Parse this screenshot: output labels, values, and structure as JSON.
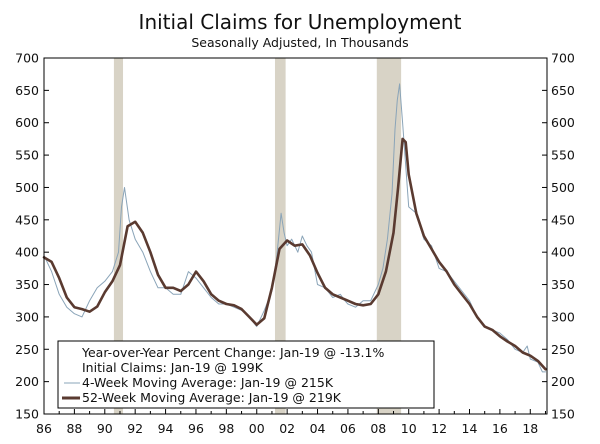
{
  "chart_data": {
    "type": "line",
    "title": "Initial Claims for Unemployment",
    "subtitle": "Seasonally Adjusted, In Thousands",
    "xlabel": "",
    "ylabel": "",
    "xlim": [
      1986,
      2019.1
    ],
    "ylim": [
      150,
      700
    ],
    "y_ticks": [
      150,
      200,
      250,
      300,
      350,
      400,
      450,
      500,
      550,
      600,
      650,
      700
    ],
    "x_ticks": [
      1986,
      1988,
      1990,
      1992,
      1994,
      1996,
      1998,
      2000,
      2002,
      2004,
      2006,
      2008,
      2010,
      2012,
      2014,
      2016,
      2018
    ],
    "x_tick_labels": [
      "86",
      "88",
      "90",
      "92",
      "94",
      "96",
      "98",
      "00",
      "02",
      "04",
      "06",
      "08",
      "10",
      "12",
      "14",
      "16",
      "18"
    ],
    "dual_y_axis": true,
    "grid": false,
    "legend_position": "bottom-left",
    "recessions": [
      [
        1990.6,
        1991.2
      ],
      [
        2001.2,
        2001.9
      ],
      [
        2007.9,
        2009.5
      ]
    ],
    "colors": {
      "four_week": "#8aa4b8",
      "fifty_two_week": "#5a3a30",
      "recession": "#d8d3c6"
    },
    "legend": [
      {
        "text": "Year-over-Year Percent Change: Jan-19 @ -13.1%",
        "marker": "none"
      },
      {
        "text": "Initial Claims: Jan-19 @ 199K",
        "marker": "none"
      },
      {
        "text": "4-Week Moving Average: Jan-19 @ 215K",
        "marker": "thin-line"
      },
      {
        "text": "52-Week Moving Average: Jan-19 @ 219K",
        "marker": "thick-line"
      }
    ],
    "series": [
      {
        "key": "four_week",
        "x": [
          1986.0,
          1986.5,
          1987.0,
          1987.5,
          1988.0,
          1988.5,
          1989.0,
          1989.5,
          1990.0,
          1990.5,
          1990.9,
          1991.1,
          1991.3,
          1991.6,
          1992.0,
          1992.5,
          1993.0,
          1993.5,
          1994.0,
          1994.5,
          1995.0,
          1995.5,
          1996.0,
          1996.5,
          1997.0,
          1997.5,
          1998.0,
          1998.5,
          1999.0,
          1999.5,
          2000.0,
          2000.5,
          2001.0,
          2001.3,
          2001.6,
          2001.8,
          2002.0,
          2002.3,
          2002.7,
          2003.0,
          2003.3,
          2003.6,
          2004.0,
          2004.5,
          2005.0,
          2005.5,
          2005.8,
          2006.0,
          2006.5,
          2007.0,
          2007.5,
          2008.0,
          2008.3,
          2008.6,
          2008.9,
          2009.1,
          2009.25,
          2009.4,
          2009.6,
          2010.0,
          2010.5,
          2011.0,
          2011.5,
          2012.0,
          2012.5,
          2013.0,
          2013.5,
          2014.0,
          2014.5,
          2015.0,
          2015.5,
          2016.0,
          2016.5,
          2017.0,
          2017.5,
          2017.8,
          2018.0,
          2018.5,
          2018.8,
          2019.0
        ],
        "values": [
          395,
          370,
          335,
          315,
          305,
          300,
          325,
          345,
          355,
          370,
          400,
          470,
          500,
          450,
          420,
          400,
          370,
          345,
          345,
          335,
          335,
          370,
          360,
          345,
          330,
          320,
          320,
          315,
          310,
          300,
          285,
          310,
          340,
          390,
          460,
          430,
          410,
          420,
          400,
          425,
          410,
          400,
          350,
          345,
          330,
          335,
          325,
          320,
          315,
          325,
          325,
          350,
          375,
          420,
          490,
          590,
          635,
          660,
          600,
          470,
          460,
          420,
          410,
          375,
          370,
          355,
          340,
          325,
          300,
          285,
          280,
          275,
          265,
          250,
          245,
          255,
          235,
          230,
          215,
          215
        ]
      },
      {
        "key": "fifty_two_week",
        "x": [
          1986.0,
          1986.5,
          1987.0,
          1987.5,
          1988.0,
          1988.5,
          1989.0,
          1989.5,
          1990.0,
          1990.5,
          1991.0,
          1991.5,
          1992.0,
          1992.5,
          1993.0,
          1993.5,
          1994.0,
          1994.5,
          1995.0,
          1995.5,
          1996.0,
          1996.5,
          1997.0,
          1997.5,
          1998.0,
          1998.5,
          1999.0,
          1999.5,
          2000.0,
          2000.5,
          2001.0,
          2001.5,
          2002.0,
          2002.5,
          2003.0,
          2003.5,
          2004.0,
          2004.5,
          2005.0,
          2005.5,
          2006.0,
          2006.5,
          2007.0,
          2007.5,
          2008.0,
          2008.5,
          2009.0,
          2009.3,
          2009.6,
          2009.8,
          2010.0,
          2010.5,
          2011.0,
          2011.5,
          2012.0,
          2012.5,
          2013.0,
          2013.5,
          2014.0,
          2014.5,
          2015.0,
          2015.5,
          2016.0,
          2016.5,
          2017.0,
          2017.5,
          2018.0,
          2018.5,
          2019.0
        ],
        "values": [
          392,
          385,
          360,
          330,
          315,
          312,
          308,
          316,
          338,
          355,
          380,
          440,
          447,
          430,
          400,
          365,
          345,
          345,
          340,
          350,
          370,
          355,
          335,
          325,
          320,
          318,
          312,
          300,
          288,
          298,
          345,
          405,
          418,
          410,
          412,
          395,
          368,
          345,
          335,
          330,
          325,
          320,
          318,
          320,
          335,
          370,
          430,
          500,
          575,
          570,
          520,
          460,
          425,
          405,
          385,
          370,
          350,
          335,
          320,
          300,
          285,
          280,
          270,
          262,
          255,
          245,
          240,
          232,
          219
        ]
      }
    ]
  }
}
